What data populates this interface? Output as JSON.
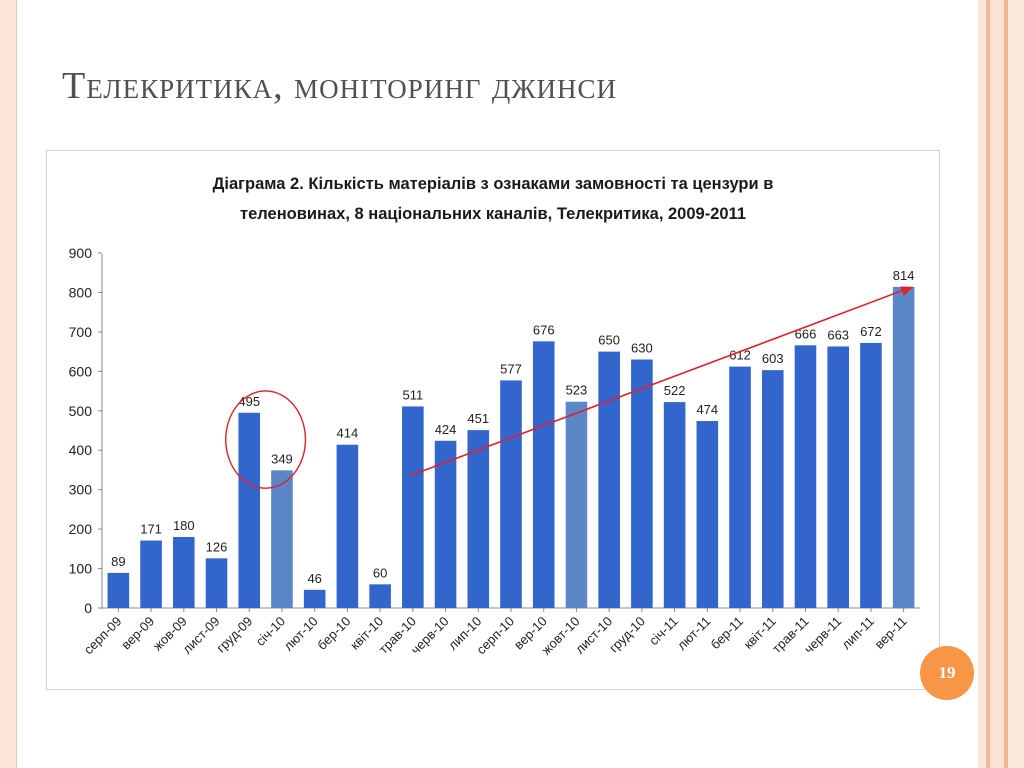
{
  "slide": {
    "title": "Телекритика, моніторинг джинси",
    "page_number": "19"
  },
  "colors": {
    "bar": "#3366cc",
    "bar_highlight": "#5b86c8",
    "trend": "#e0202a",
    "circle": "#e0202a",
    "badge": "#f79646"
  },
  "chart_data": {
    "type": "bar",
    "title": "Діаграма 2. Кількість матеріалів з ознаками замовності та цензури в теленовинах, 8 національних каналів, Телекритика, 2009-2011",
    "title_lines": [
      "Діаграма 2. Кількість матеріалів з ознаками замовності та цензури в",
      "теленовинах, 8 національних каналів, Телекритика, 2009-2011"
    ],
    "categories": [
      "серп-09",
      "вер-09",
      "жов-09",
      "лист-09",
      "груд-09",
      "січ-10",
      "лют-10",
      "бер-10",
      "квіт-10",
      "трав-10",
      "черв-10",
      "лип-10",
      "серп-10",
      "вер-10",
      "жовт-10",
      "лист-10",
      "груд-10",
      "січ-11",
      "лют-11",
      "бер-11",
      "квіт-11",
      "трав-11",
      "черв-11",
      "лип-11",
      "вер-11"
    ],
    "values": [
      89,
      171,
      180,
      126,
      495,
      349,
      46,
      414,
      60,
      511,
      424,
      451,
      577,
      676,
      523,
      650,
      630,
      522,
      474,
      612,
      603,
      666,
      663,
      672,
      814
    ],
    "ylim": [
      0,
      900
    ],
    "yticks": [
      0,
      100,
      200,
      300,
      400,
      500,
      600,
      700,
      800,
      900
    ],
    "xlabel": "",
    "ylabel": "",
    "grid": false,
    "legend": "none",
    "highlighted_categories": [
      "січ-10",
      "жовт-10",
      "вер-11"
    ],
    "annotations": {
      "circle_around": [
        "груд-09",
        "січ-10"
      ],
      "trend_arrow": {
        "from": {
          "category": "трав-10",
          "value": 335
        },
        "to": {
          "category": "вер-11",
          "value": 814
        }
      }
    }
  }
}
